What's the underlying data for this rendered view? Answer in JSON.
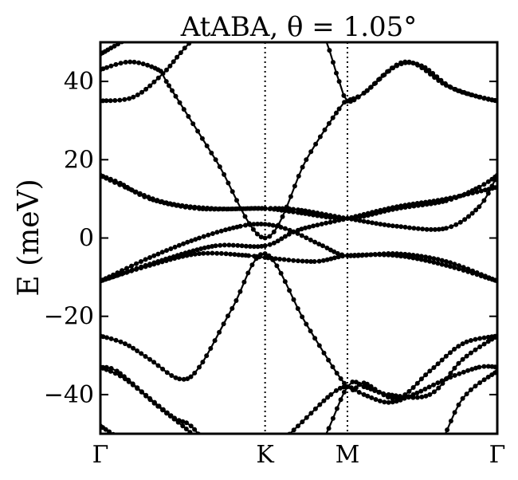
{
  "chart_data": {
    "type": "line",
    "title": "AtABA, θ = 1.05°",
    "xlabel": "",
    "ylabel": "E (meV)",
    "ylim": [
      -50,
      50
    ],
    "yticks": [
      -40,
      -20,
      0,
      20,
      40
    ],
    "ytick_labels": [
      "−40",
      "−20",
      "0",
      "20",
      "40"
    ],
    "x_path_ticks": [
      {
        "label": "Γ",
        "pos": 0.0
      },
      {
        "label": "K",
        "pos": 1.0
      },
      {
        "label": "M",
        "pos": 1.5
      },
      {
        "label": "Γ",
        "pos": 2.41
      }
    ],
    "xlim": [
      0.0,
      2.41
    ],
    "grid": false,
    "legend": "none",
    "colors": {
      "line": "#000000",
      "marker": "#000000"
    },
    "series": [
      {
        "x": [
          0.0,
          0.5,
          1.0,
          1.5,
          1.8,
          2.0,
          2.41
        ],
        "values": [
          47,
          58,
          62,
          58,
          60,
          58,
          51
        ]
      },
      {
        "x": [
          0.0,
          0.18,
          0.35,
          0.4,
          0.7,
          1.0,
          1.25,
          1.45,
          1.5,
          1.6,
          1.85,
          2.1,
          2.3,
          2.41
        ],
        "values": [
          43,
          45,
          43,
          40,
          20,
          0,
          20,
          33,
          35,
          37,
          45,
          39,
          36,
          35
        ]
      },
      {
        "x": [
          0.0,
          0.2,
          0.38,
          0.6,
          1.0,
          1.3,
          1.45,
          1.5,
          1.6,
          1.8,
          1.95,
          2.15,
          2.41
        ],
        "values": [
          35,
          36,
          42,
          52,
          62,
          56,
          40,
          35,
          37,
          44,
          44,
          38,
          35
        ]
      },
      {
        "x": [
          0.0,
          0.12,
          0.3,
          0.6,
          1.0,
          1.2,
          1.5,
          1.8,
          2.1,
          2.3,
          2.41
        ],
        "values": [
          16,
          14,
          10,
          7.5,
          7.6,
          7.2,
          5,
          3,
          2.5,
          8,
          16
        ]
      },
      {
        "x": [
          0.0,
          0.15,
          0.4,
          0.7,
          1.0,
          1.2,
          1.5,
          1.8,
          2.1,
          2.3,
          2.41
        ],
        "values": [
          16,
          13,
          9,
          7.5,
          7.5,
          6.5,
          5,
          7.5,
          9.5,
          13,
          16
        ]
      },
      {
        "x": [
          0.0,
          0.3,
          0.6,
          0.85,
          1.0,
          1.15,
          1.35,
          1.5,
          1.8,
          2.1,
          2.41
        ],
        "values": [
          -11,
          -5,
          0,
          3,
          3.5,
          2,
          -2,
          -4.5,
          -4,
          -6,
          -11
        ]
      },
      {
        "x": [
          0.0,
          0.35,
          0.7,
          1.0,
          1.2,
          1.5,
          1.8,
          2.1,
          2.41
        ],
        "values": [
          -11,
          -6,
          -2,
          -2,
          2,
          5,
          8,
          10,
          13
        ]
      },
      {
        "x": [
          0.0,
          0.3,
          0.6,
          0.9,
          1.0,
          1.3,
          1.5,
          1.8,
          2.1,
          2.41
        ],
        "values": [
          -11,
          -7,
          -4,
          -4.5,
          -5,
          -6,
          -4.5,
          -4.5,
          -7,
          -11
        ]
      },
      {
        "x": [
          0.0,
          0.15,
          0.3,
          0.48,
          0.6,
          0.8,
          1.0,
          1.25,
          1.5,
          1.6,
          1.8,
          2.0,
          2.2,
          2.41
        ],
        "values": [
          -25,
          -27,
          -31,
          -36,
          -33,
          -18,
          -4,
          -22,
          -38,
          -37,
          -41,
          -34,
          -27,
          -25
        ]
      },
      {
        "x": [
          0.0,
          0.15,
          0.35,
          0.5,
          0.7,
          1.0,
          1.3,
          1.5,
          1.6,
          1.75,
          2.0,
          2.2,
          2.41
        ],
        "values": [
          -33,
          -36,
          -43,
          -48,
          -55,
          -62,
          -55,
          -38,
          -38,
          -40,
          -40,
          -31,
          -25
        ]
      },
      {
        "x": [
          0.0,
          0.1,
          0.3,
          0.45,
          0.55,
          0.7,
          0.9,
          1.0,
          1.2,
          1.4,
          1.5,
          1.6,
          1.75,
          1.9,
          2.1,
          2.3,
          2.41
        ],
        "values": [
          -33,
          -34,
          -41,
          -46,
          -48,
          -55,
          -60,
          -56,
          -48,
          -40,
          -38,
          -40,
          -42,
          -40,
          -36,
          -33,
          -33
        ]
      },
      {
        "x": [
          0.0,
          0.3,
          0.6,
          1.0,
          1.4,
          1.7,
          2.0,
          2.2,
          2.41
        ],
        "values": [
          -48,
          -56,
          -62,
          -62,
          -58,
          -55,
          -56,
          -41,
          -34
        ]
      }
    ]
  }
}
